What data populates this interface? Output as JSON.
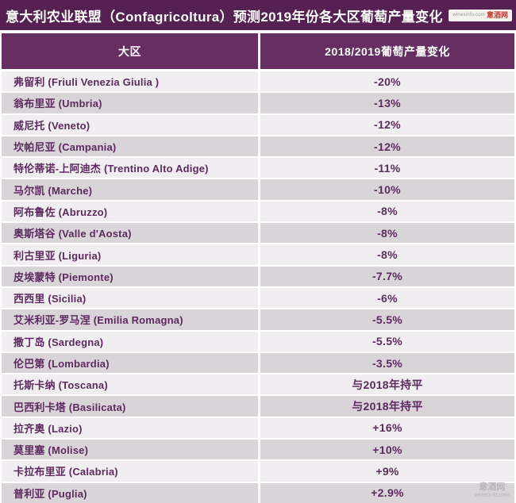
{
  "title": "意大利农业联盟（Confagricoltura）预测2019年份各大区葡萄产量变化",
  "logo": {
    "latin": "winesinfo.com",
    "cn": "意酒网"
  },
  "watermark": {
    "line1": "意酒网",
    "line2": "winesinfo.com"
  },
  "colors": {
    "title_bar": "#552052",
    "header_bg": "#672E63",
    "row_light": "#F1EEF1",
    "row_dark": "#D8D4D8",
    "text_purple": "#5D2A60",
    "logo_red": "#C2342C"
  },
  "chart_data": {
    "type": "table",
    "title": "意大利农业联盟（Confagricoltura）预测2019年份各大区葡萄产量变化",
    "columns": [
      "大区",
      "2018/2019葡萄产量变化"
    ],
    "rows": [
      {
        "region": "弗留利 (Friuli Venezia Giulia )",
        "change": "-20%"
      },
      {
        "region": "翁布里亚 (Umbria)",
        "change": "-13%"
      },
      {
        "region": "威尼托 (Veneto)",
        "change": "-12%"
      },
      {
        "region": "坎帕尼亚 (Campania)",
        "change": "-12%"
      },
      {
        "region": "特伦蒂诺-上阿迪杰 (Trentino Alto Adige)",
        "change": "-11%"
      },
      {
        "region": "马尔凯 (Marche)",
        "change": "-10%"
      },
      {
        "region": "阿布鲁佐 (Abruzzo)",
        "change": "-8%"
      },
      {
        "region": "奥斯塔谷 (Valle d'Aosta)",
        "change": "-8%"
      },
      {
        "region": "利古里亚 (Liguria)",
        "change": "-8%"
      },
      {
        "region": "皮埃蒙特 (Piemonte)",
        "change": "-7.7%"
      },
      {
        "region": "西西里 (Sicilia)",
        "change": "-6%"
      },
      {
        "region": "艾米利亚-罗马涅 (Emilia Romagna)",
        "change": "-5.5%"
      },
      {
        "region": "撒丁岛 (Sardegna)",
        "change": "-5.5%"
      },
      {
        "region": "伦巴第 (Lombardia)",
        "change": "-3.5%"
      },
      {
        "region": "托斯卡纳 (Toscana)",
        "change": "与2018年持平"
      },
      {
        "region": "巴西利卡塔 (Basilicata)",
        "change": "与2018年持平"
      },
      {
        "region": "拉齐奥 (Lazio)",
        "change": "+16%"
      },
      {
        "region": "莫里塞 (Molise)",
        "change": "+10%"
      },
      {
        "region": "卡拉布里亚 (Calabria)",
        "change": "+9%"
      },
      {
        "region": "普利亚 (Puglia)",
        "change": "+2.9%"
      }
    ]
  }
}
